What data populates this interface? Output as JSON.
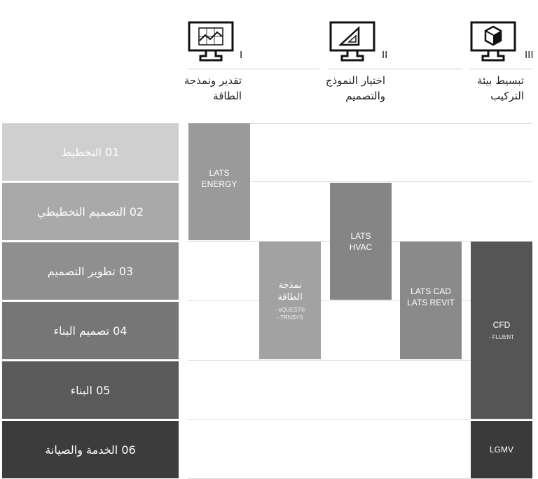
{
  "phases": [
    {
      "numeral": "I",
      "label": "تقدير ونمذجة الطاقة",
      "icon": "chart-monitor-icon"
    },
    {
      "numeral": "II",
      "label": "اختيار النموذج والتصميم",
      "icon": "set-square-monitor-icon"
    },
    {
      "numeral": "III",
      "label": "تبسيط بيئة التركيب",
      "icon": "cube-monitor-icon"
    }
  ],
  "stages": [
    {
      "label": "01 التخطيط",
      "color": "#cfcfcf"
    },
    {
      "label": "02 التصميم التخطيطي",
      "color": "#a9a9a9"
    },
    {
      "label": "03 تطوير التصميم",
      "color": "#8f8f8f"
    },
    {
      "label": "04 تصميم البناء",
      "color": "#767676"
    },
    {
      "label": "05 البناء",
      "color": "#5a5a5a"
    },
    {
      "label": "06 الخدمة والصيانة",
      "color": "#3c3c3c"
    }
  ],
  "tools": [
    {
      "title": "LATS ENERGY",
      "sub": "",
      "color": "#9a9a9a"
    },
    {
      "title": "نمذجة الطاقة",
      "sub1": "- eQUEST®",
      "sub2": "- TRNSYS",
      "color": "#a2a2a2"
    },
    {
      "title": "LATS HVAC",
      "sub": "",
      "color": "#858585"
    },
    {
      "title": "LATS CAD LATS REVIT",
      "sub": "",
      "color": "#8a8a8a"
    },
    {
      "title": "CFD",
      "sub1": "- FLUENT",
      "color": "#555555"
    },
    {
      "title": "LGMV",
      "sub": "",
      "color": "#3a3a3a"
    }
  ]
}
